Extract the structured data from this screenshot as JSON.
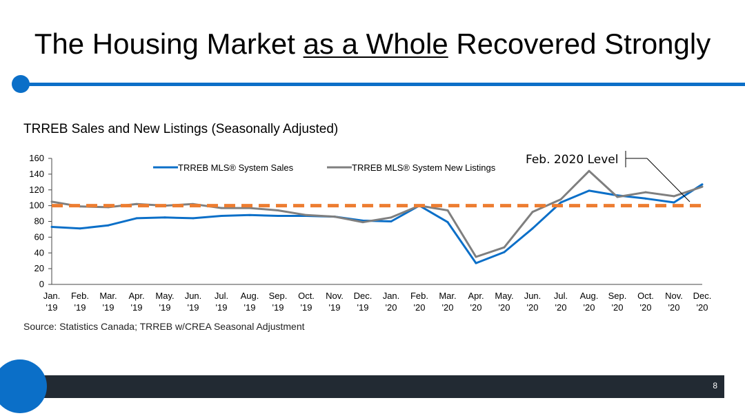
{
  "slide": {
    "title_pre": "The Housing Market ",
    "title_emph": "as a Whole",
    "title_post": " Recovered Strongly",
    "page_number": "8",
    "accent_color": "#0b6fc8",
    "footer_color": "#222a33"
  },
  "chart_data": {
    "type": "line",
    "title": "TRREB Sales and New Listings (Seasonally Adjusted)",
    "source": "Source: Statistics Canada; TRREB w/CREA Seasonal Adjustment",
    "categories": [
      [
        "Jan.",
        "'19"
      ],
      [
        "Feb.",
        "'19"
      ],
      [
        "Mar.",
        "'19"
      ],
      [
        "Apr.",
        "'19"
      ],
      [
        "May.",
        "'19"
      ],
      [
        "Jun.",
        "'19"
      ],
      [
        "Jul.",
        "'19"
      ],
      [
        "Aug.",
        "'19"
      ],
      [
        "Sep.",
        "'19"
      ],
      [
        "Oct.",
        "'19"
      ],
      [
        "Nov.",
        "'19"
      ],
      [
        "Dec.",
        "'19"
      ],
      [
        "Jan.",
        "'20"
      ],
      [
        "Feb.",
        "'20"
      ],
      [
        "Mar.",
        "'20"
      ],
      [
        "Apr.",
        "'20"
      ],
      [
        "May.",
        "'20"
      ],
      [
        "Jun.",
        "'20"
      ],
      [
        "Jul.",
        "'20"
      ],
      [
        "Aug.",
        "'20"
      ],
      [
        "Sep.",
        "'20"
      ],
      [
        "Oct.",
        "'20"
      ],
      [
        "Nov.",
        "'20"
      ],
      [
        "Dec.",
        "'20"
      ]
    ],
    "series": [
      {
        "name": "TRREB MLS® System Sales",
        "color": "#0b6fc8",
        "values": [
          73,
          71,
          75,
          84,
          85,
          84,
          87,
          88,
          87,
          87,
          86,
          81,
          80,
          100,
          79,
          27,
          41,
          71,
          104,
          119,
          113,
          109,
          104,
          127
        ]
      },
      {
        "name": "TRREB MLS® System New Listings",
        "color": "#7f7f7f",
        "values": [
          105,
          99,
          98,
          102,
          100,
          102,
          97,
          97,
          94,
          88,
          86,
          79,
          85,
          100,
          94,
          35,
          47,
          92,
          108,
          144,
          111,
          117,
          112,
          124
        ]
      }
    ],
    "reference_line": {
      "value": 100,
      "label": "Feb. 2020 Level",
      "color": "#ed7d31"
    },
    "ylim": [
      0,
      160
    ],
    "yticks": [
      0,
      20,
      40,
      60,
      80,
      100,
      120,
      140,
      160
    ],
    "grid": false,
    "legend_position": "top"
  }
}
